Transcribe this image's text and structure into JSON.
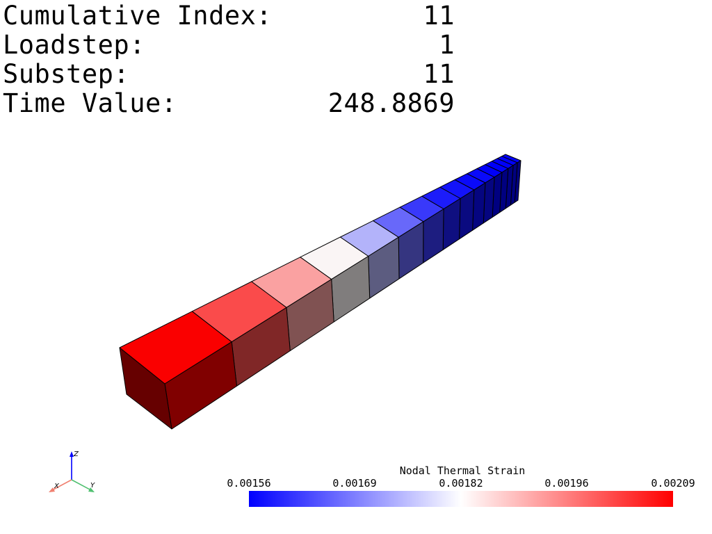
{
  "info": {
    "rows": [
      {
        "label": "Cumulative Index:",
        "value": "11"
      },
      {
        "label": "Loadstep:",
        "value": "1"
      },
      {
        "label": "Substep:",
        "value": "11"
      },
      {
        "label": "Time Value:",
        "value": "248.8869"
      }
    ]
  },
  "legend": {
    "title": "Nodal Thermal Strain",
    "ticks": [
      "0.00156",
      "0.00169",
      "0.00182",
      "0.00196",
      "0.00209"
    ],
    "colors": {
      "min": "#0000ff",
      "mid": "#ffffff",
      "max": "#ff0000"
    }
  },
  "axes": {
    "x": "X",
    "y": "Y",
    "z": "Z"
  },
  "mesh": {
    "element_count": 16,
    "element_values": [
      0.00209,
      0.00201,
      0.00192,
      0.00183,
      0.00175,
      0.00167,
      0.00162,
      0.00159,
      0.00158,
      0.00157,
      0.00157,
      0.00156,
      0.00156,
      0.00156,
      0.00156,
      0.00156
    ]
  }
}
